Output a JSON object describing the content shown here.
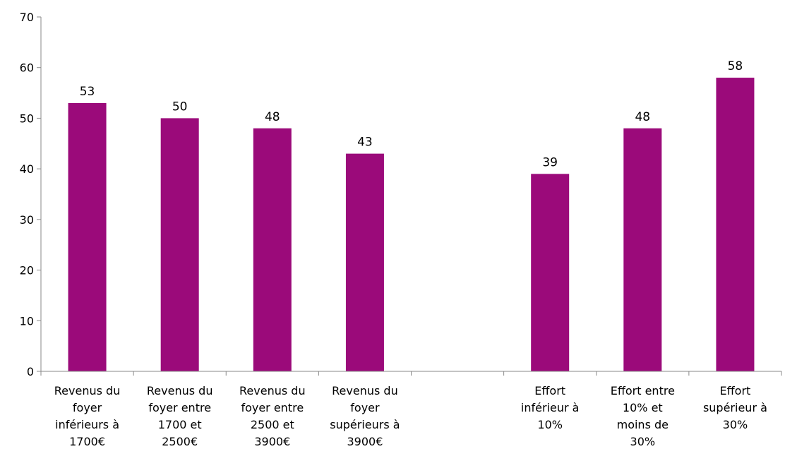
{
  "chart_data": {
    "type": "bar",
    "categories": [
      "Revenus du foyer inférieurs à 1700€",
      "Revenus du foyer entre 1700 et 2500€",
      "Revenus du foyer entre 2500 et 3900€",
      "Revenus du foyer supérieurs à 3900€",
      "",
      "Effort inférieur à 10%",
      "Effort entre 10% et moins de 30%",
      "Effort supérieur à 30%"
    ],
    "category_lines": [
      [
        "Revenus du",
        "foyer",
        "inférieurs à",
        "1700€"
      ],
      [
        "Revenus du",
        "foyer entre",
        "1700 et",
        "2500€"
      ],
      [
        "Revenus du",
        "foyer entre",
        "2500 et",
        "3900€"
      ],
      [
        "Revenus du",
        "foyer",
        "supérieurs à",
        "3900€"
      ],
      [],
      [
        "Effort",
        "inférieur à",
        "10%"
      ],
      [
        "Effort entre",
        "10% et",
        "moins de",
        "30%"
      ],
      [
        "Effort",
        "supérieur à",
        "30%"
      ]
    ],
    "values": [
      53,
      50,
      48,
      43,
      null,
      39,
      48,
      58
    ],
    "data_labels": [
      "53",
      "50",
      "48",
      "43",
      "",
      "39",
      "48",
      "58"
    ],
    "ylim": [
      0,
      70
    ],
    "yticks": [
      0,
      10,
      20,
      30,
      40,
      50,
      60,
      70
    ],
    "bar_color": "#9B0A7A",
    "grid": false,
    "legend": "none",
    "title": "",
    "xlabel": "",
    "ylabel": ""
  }
}
